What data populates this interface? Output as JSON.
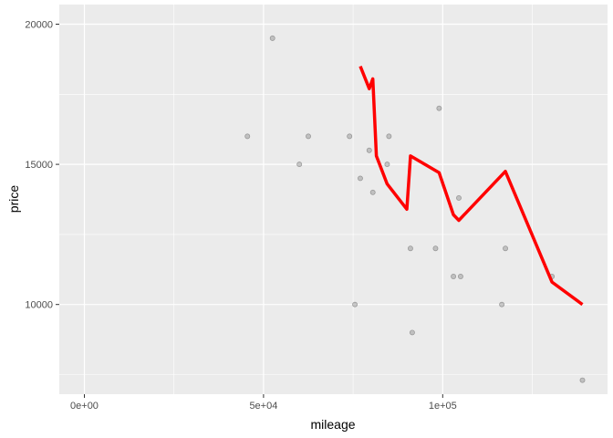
{
  "chart_data": {
    "type": "scatter",
    "title": "",
    "xlabel": "mileage",
    "ylabel": "price",
    "xlim": [
      -7000,
      146000
    ],
    "ylim": [
      6800,
      20700
    ],
    "x_ticks": [
      {
        "value": 0,
        "label": "0e+00"
      },
      {
        "value": 50000,
        "label": "5e+04"
      },
      {
        "value": 100000,
        "label": "1e+05"
      }
    ],
    "y_ticks": [
      {
        "value": 10000,
        "label": "10000"
      },
      {
        "value": 15000,
        "label": "15000"
      },
      {
        "value": 20000,
        "label": "20000"
      }
    ],
    "grid": true,
    "legend": "none",
    "series": [
      {
        "type": "scatter",
        "color": "#808080",
        "points": [
          {
            "x": 45500,
            "y": 16000
          },
          {
            "x": 52500,
            "y": 19500
          },
          {
            "x": 60000,
            "y": 15000
          },
          {
            "x": 62500,
            "y": 16000
          },
          {
            "x": 74000,
            "y": 16000
          },
          {
            "x": 75500,
            "y": 10000
          },
          {
            "x": 77000,
            "y": 14500
          },
          {
            "x": 79500,
            "y": 15500
          },
          {
            "x": 80500,
            "y": 14000
          },
          {
            "x": 84500,
            "y": 15000
          },
          {
            "x": 85000,
            "y": 16000
          },
          {
            "x": 91000,
            "y": 12000
          },
          {
            "x": 91500,
            "y": 9000
          },
          {
            "x": 98000,
            "y": 12000
          },
          {
            "x": 99000,
            "y": 17000
          },
          {
            "x": 103000,
            "y": 11000
          },
          {
            "x": 104500,
            "y": 13800
          },
          {
            "x": 105000,
            "y": 11000
          },
          {
            "x": 116500,
            "y": 10000
          },
          {
            "x": 117500,
            "y": 12000
          },
          {
            "x": 130500,
            "y": 11000
          },
          {
            "x": 139000,
            "y": 7300
          }
        ]
      },
      {
        "type": "line",
        "color": "#ff0000",
        "points": [
          {
            "x": 77000,
            "y": 18500
          },
          {
            "x": 79500,
            "y": 17700
          },
          {
            "x": 80500,
            "y": 18050
          },
          {
            "x": 81500,
            "y": 15300
          },
          {
            "x": 84500,
            "y": 14300
          },
          {
            "x": 90000,
            "y": 13400
          },
          {
            "x": 91000,
            "y": 15300
          },
          {
            "x": 99000,
            "y": 14700
          },
          {
            "x": 103000,
            "y": 13200
          },
          {
            "x": 104500,
            "y": 13000
          },
          {
            "x": 117500,
            "y": 14750
          },
          {
            "x": 130500,
            "y": 10800
          },
          {
            "x": 139000,
            "y": 10000
          }
        ]
      }
    ]
  }
}
